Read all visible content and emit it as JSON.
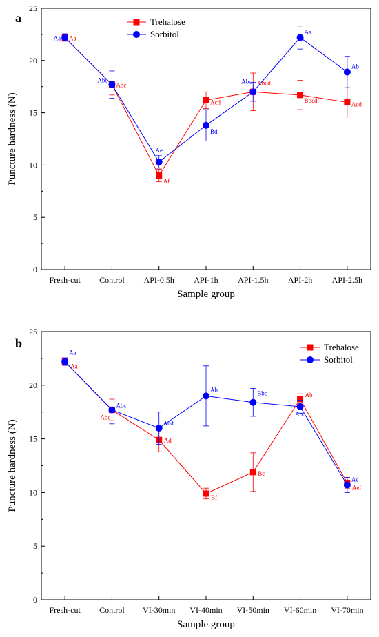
{
  "chart_data": [
    {
      "type": "line",
      "panel_label": "a",
      "xlabel": "Sample group",
      "ylabel": "Puncture hardness (N)",
      "ylim": [
        0,
        25
      ],
      "yticks": [
        0,
        5,
        10,
        15,
        20,
        25
      ],
      "categories": [
        "Fresh-cut",
        "Control",
        "API-0.5h",
        "API-1h",
        "API-1.5h",
        "API-2h",
        "API-2.5h"
      ],
      "legend_position": "top-center",
      "grid": false,
      "series": [
        {
          "name": "Trehalose",
          "color": "#ff0000",
          "marker": "square",
          "values": [
            22.2,
            17.7,
            9.0,
            16.2,
            17.0,
            16.7,
            16.0
          ],
          "errors": [
            0.35,
            1.0,
            0.6,
            0.8,
            1.8,
            1.4,
            1.4
          ],
          "labels": [
            "Aa",
            "Abc",
            "Af",
            "Acd",
            "Abcd",
            "Bbcd",
            "Acd"
          ]
        },
        {
          "name": "Sorbitol",
          "color": "#0000ff",
          "marker": "circle",
          "values": [
            22.2,
            17.7,
            10.3,
            13.8,
            17.0,
            22.2,
            18.9
          ],
          "errors": [
            0.35,
            1.3,
            0.6,
            1.5,
            0.9,
            1.1,
            1.5
          ],
          "labels": [
            "Aa",
            "Abc",
            "Ae",
            "Bd",
            "Abc",
            "Aa",
            "Ab"
          ]
        }
      ]
    },
    {
      "type": "line",
      "panel_label": "b",
      "xlabel": "Sample group",
      "ylabel": "Puncture hardness (N)",
      "ylim": [
        0,
        25
      ],
      "yticks": [
        0,
        5,
        10,
        15,
        20,
        25
      ],
      "categories": [
        "Fresh-cut",
        "Control",
        "VI-30min",
        "VI-40min",
        "VI-50min",
        "VI-60min",
        "VI-70min"
      ],
      "legend_position": "top-right",
      "grid": false,
      "series": [
        {
          "name": "Trehalose",
          "color": "#ff0000",
          "marker": "square",
          "values": [
            22.2,
            17.7,
            14.9,
            9.9,
            11.9,
            18.7,
            10.9
          ],
          "errors": [
            0.35,
            1.0,
            1.1,
            0.5,
            1.8,
            0.5,
            0.5
          ],
          "labels": [
            "Aa",
            "Abc",
            "Ad",
            "Bf",
            "Bc",
            "Ab",
            "Aef"
          ]
        },
        {
          "name": "Sorbitol",
          "color": "#0000ff",
          "marker": "circle",
          "values": [
            22.2,
            17.7,
            16.0,
            19.0,
            18.4,
            18.0,
            10.7
          ],
          "errors": [
            0.35,
            1.3,
            1.5,
            2.8,
            1.3,
            0.6,
            0.7
          ],
          "labels": [
            "Aa",
            "Abc",
            "Acd",
            "Ab",
            "Bbc",
            "Abc",
            "Ae"
          ]
        }
      ]
    }
  ]
}
